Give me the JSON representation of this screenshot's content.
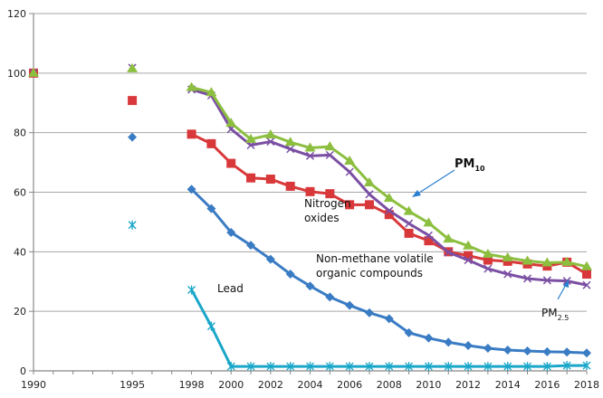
{
  "chart_data": {
    "type": "line",
    "title": "",
    "xlabel": "",
    "ylabel": "",
    "ylim": [
      0,
      120
    ],
    "yticks": [
      0,
      20,
      40,
      60,
      80,
      100,
      120
    ],
    "xlim": [
      1990,
      2018
    ],
    "xtick_labels": [
      "1990",
      "1995",
      "1998",
      "2000",
      "2002",
      "2004",
      "2006",
      "2008",
      "2010",
      "2012",
      "2014",
      "2016",
      "2018"
    ],
    "grid": "horizontal",
    "legend": "none (inline annotations)",
    "series": [
      {
        "name": "Non-methane volatile organic compounds",
        "color": "#3a7cc4",
        "marker": "diamond",
        "x": [
          1990,
          1995,
          1998,
          1999,
          2000,
          2001,
          2002,
          2003,
          2004,
          2005,
          2006,
          2007,
          2008,
          2009,
          2010,
          2011,
          2012,
          2013,
          2014,
          2015,
          2016,
          2017,
          2018
        ],
        "values": [
          100,
          78.5,
          61,
          54.5,
          46.5,
          42.2,
          37.5,
          32.5,
          28.5,
          24.8,
          22,
          19.5,
          17.5,
          12.8,
          11,
          9.6,
          8.5,
          7.6,
          7,
          6.7,
          6.4,
          6.3,
          6
        ]
      },
      {
        "name": "Nitrogen oxides",
        "color": "#d9383a",
        "marker": "square",
        "x": [
          1990,
          1995,
          1998,
          1999,
          2000,
          2001,
          2002,
          2003,
          2004,
          2005,
          2006,
          2007,
          2008,
          2009,
          2010,
          2011,
          2012,
          2013,
          2014,
          2015,
          2016,
          2017,
          2018
        ],
        "values": [
          100,
          90.8,
          79.5,
          76.3,
          69.7,
          64.8,
          64.4,
          62,
          60.2,
          59.5,
          55.8,
          55.8,
          52.5,
          46.2,
          43.7,
          40,
          38.7,
          37.2,
          36.8,
          35.9,
          35.2,
          36.5,
          32.5
        ]
      },
      {
        "name": "PM10",
        "color": "#8cbf3f",
        "marker": "triangle",
        "x": [
          1990,
          1995,
          1998,
          1999,
          2000,
          2001,
          2002,
          2003,
          2004,
          2005,
          2006,
          2007,
          2008,
          2009,
          2010,
          2011,
          2012,
          2013,
          2014,
          2015,
          2016,
          2017,
          2018
        ],
        "values": [
          100,
          101.5,
          95.2,
          93.5,
          83.2,
          77.8,
          79.3,
          76.8,
          74.9,
          75.3,
          70.5,
          63.2,
          58,
          53.6,
          49.7,
          44.3,
          42,
          39.2,
          38,
          36.9,
          36.3,
          36.5,
          35
        ]
      },
      {
        "name": "PM2.5",
        "color": "#7b4fa3",
        "marker": "x",
        "x": [
          1990,
          1995,
          1998,
          1999,
          2000,
          2001,
          2002,
          2003,
          2004,
          2005,
          2006,
          2007,
          2008,
          2009,
          2010,
          2011,
          2012,
          2013,
          2014,
          2015,
          2016,
          2017,
          2018
        ],
        "values": [
          100,
          101.8,
          94.5,
          92.5,
          81.2,
          75.8,
          77,
          74.5,
          72.2,
          72.5,
          66.8,
          59.3,
          53.8,
          49.5,
          45.5,
          39.8,
          37.2,
          34.3,
          32.5,
          31,
          30.4,
          30.2,
          28.8
        ]
      },
      {
        "name": "Lead",
        "color": "#1aa7c9",
        "marker": "asterisk",
        "x": [
          1990,
          1995,
          1998,
          1999,
          2000,
          2001,
          2002,
          2003,
          2004,
          2005,
          2006,
          2007,
          2008,
          2009,
          2010,
          2011,
          2012,
          2013,
          2014,
          2015,
          2016,
          2017,
          2018
        ],
        "values": [
          100,
          49,
          27.2,
          15,
          1.5,
          1.5,
          1.5,
          1.5,
          1.5,
          1.5,
          1.5,
          1.5,
          1.5,
          1.5,
          1.5,
          1.5,
          1.5,
          1.5,
          1.5,
          1.5,
          1.5,
          1.8,
          1.8
        ]
      }
    ],
    "annotations": [
      {
        "text": "Nitrogen",
        "line2": "oxides",
        "series": "Nitrogen oxides"
      },
      {
        "text": "Non-methane  volatile",
        "line2": "organic compounds",
        "series": "Non-methane volatile organic compounds"
      },
      {
        "text": "Lead",
        "series": "Lead"
      },
      {
        "text": "PM",
        "sub": "10",
        "series": "PM10",
        "arrow": true
      },
      {
        "text": "PM",
        "sub": "2.5",
        "series": "PM2.5",
        "arrow": true
      }
    ],
    "connected_from": 1998
  }
}
